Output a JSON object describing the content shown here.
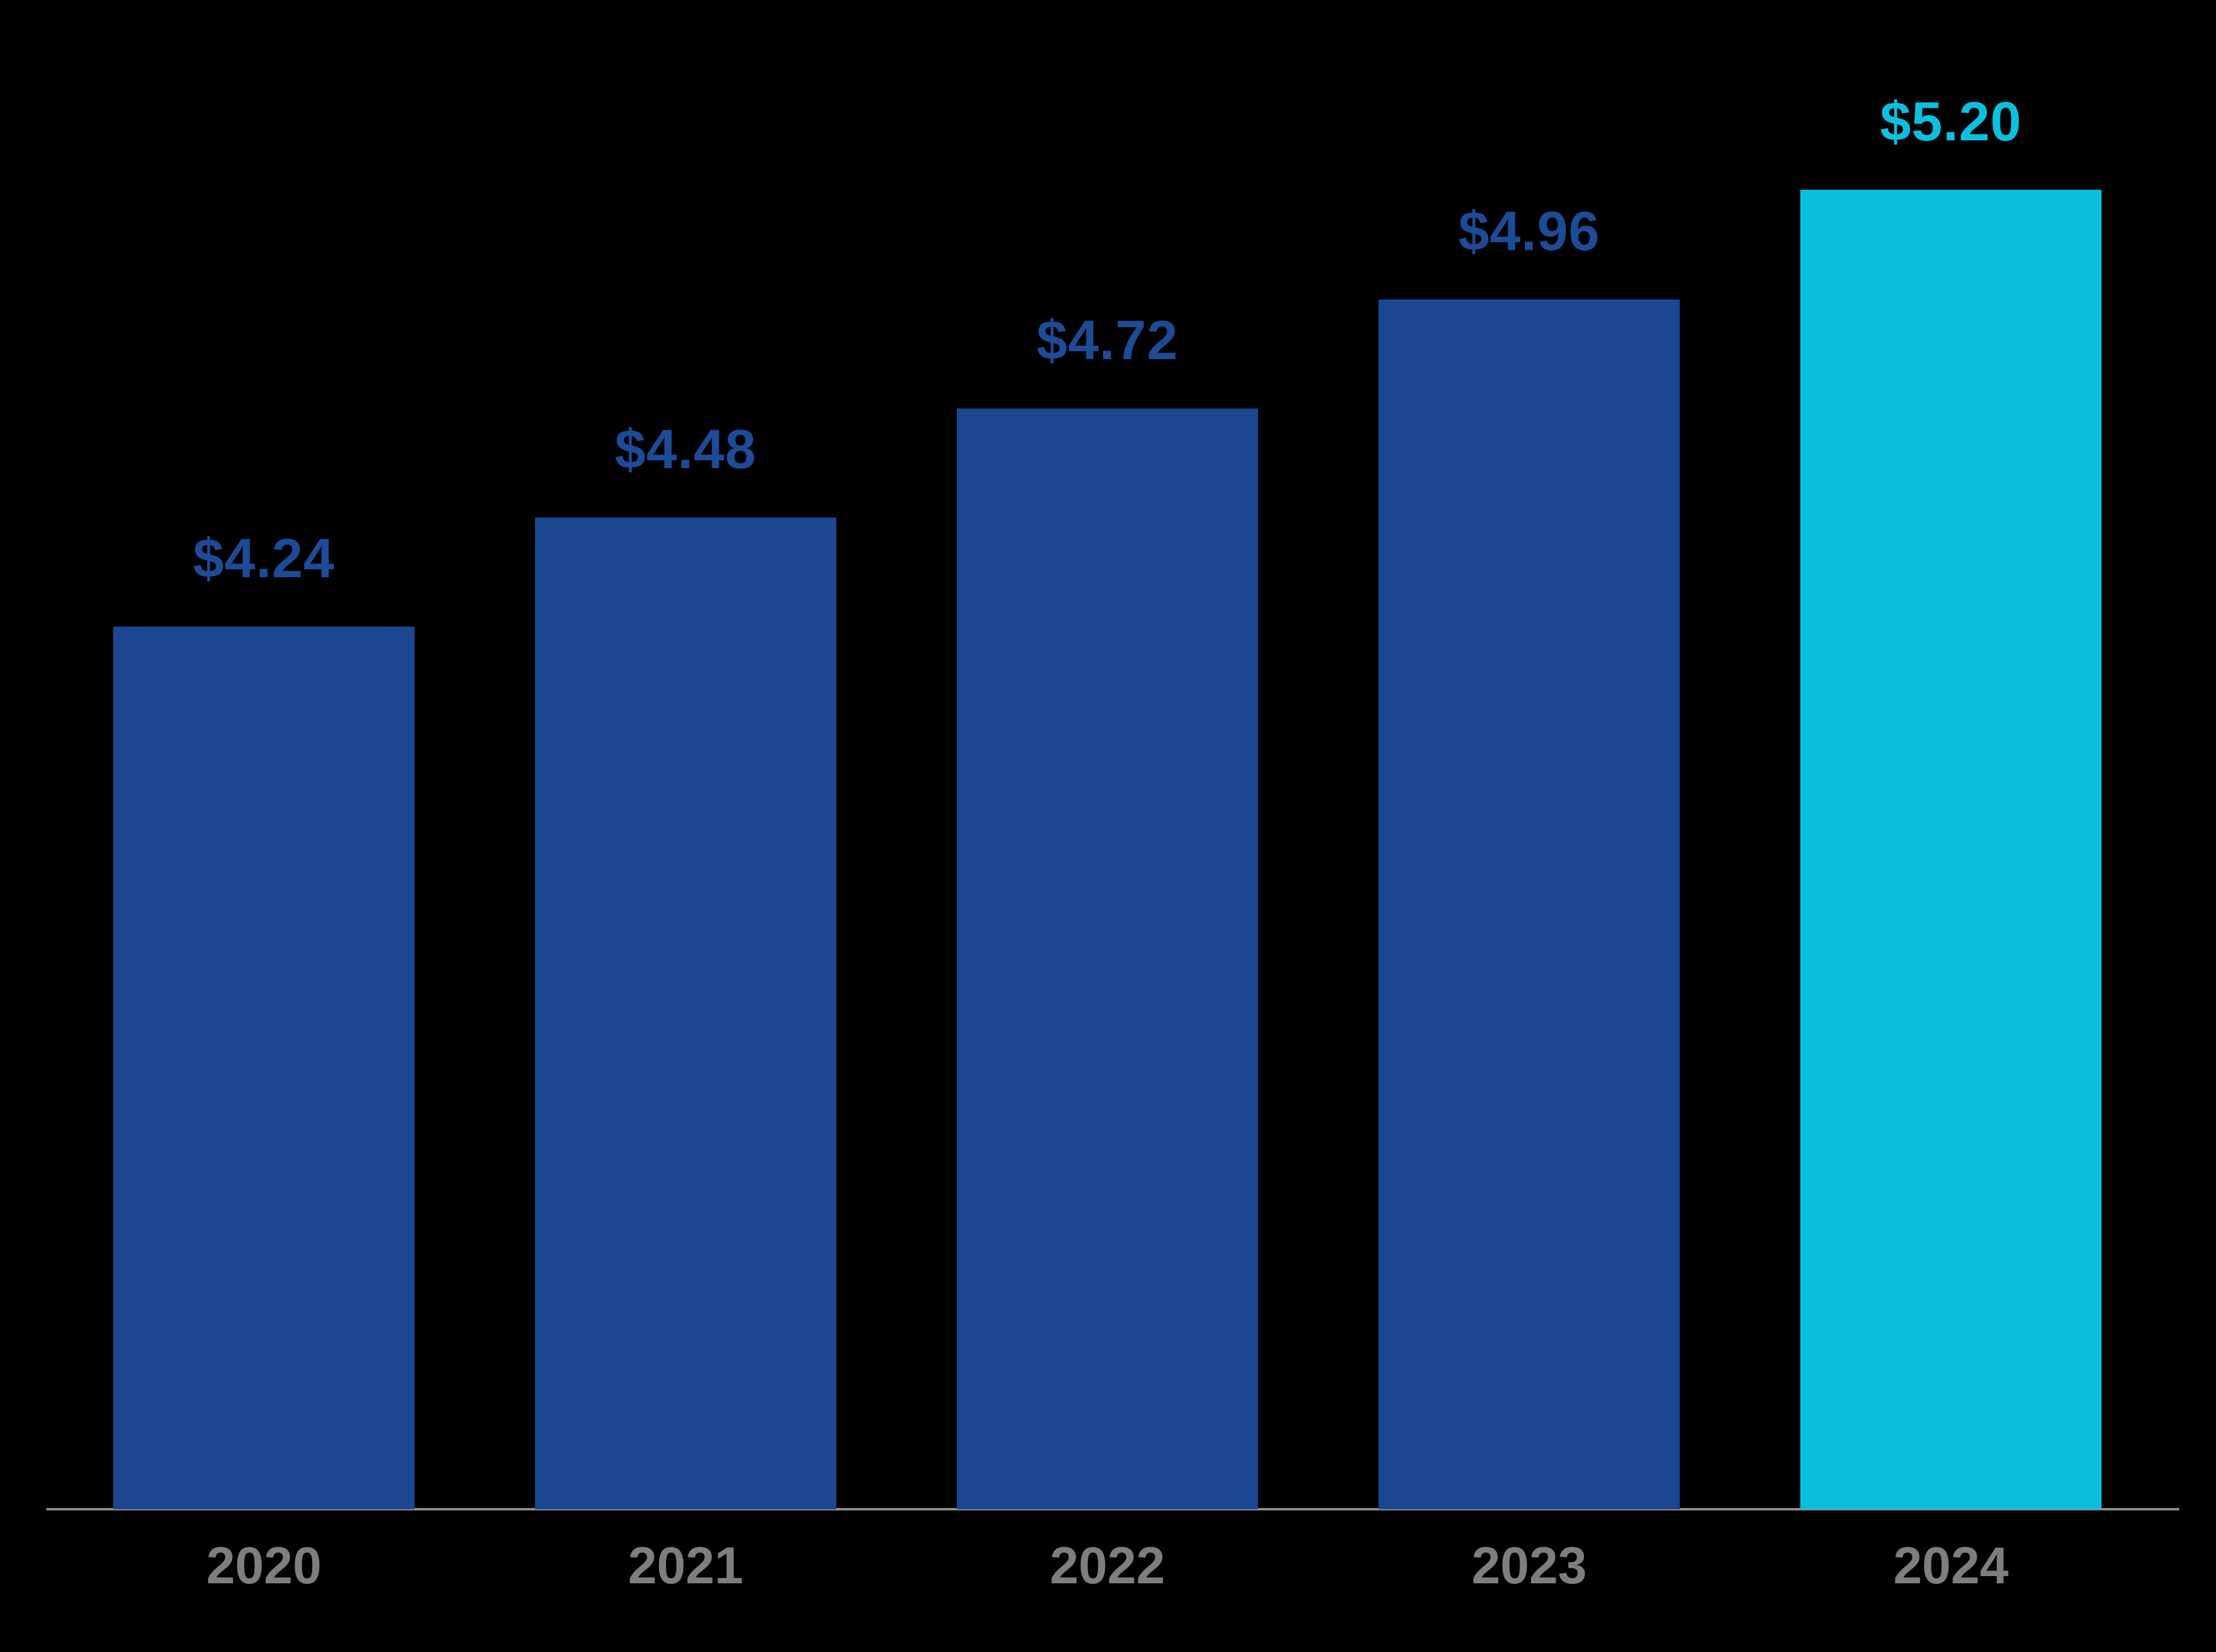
{
  "chart_data": {
    "type": "bar",
    "title": "",
    "categories": [
      "2020",
      "2021",
      "2022",
      "2023",
      "2024"
    ],
    "values": [
      4.24,
      4.48,
      4.72,
      4.96,
      5.2
    ],
    "value_labels": [
      "$4.24",
      "$4.48",
      "$4.72",
      "$4.96",
      "$5.20"
    ],
    "ylim": [
      2.3,
      5.5
    ],
    "grid": false,
    "legend": false,
    "background": "#000000",
    "bar_colors": [
      "#1b4792",
      "#1b4792",
      "#1b4792",
      "#1b4792",
      "#0bc0de"
    ],
    "value_label_colors": [
      "#1d4b97",
      "#1d4b97",
      "#1d4b97",
      "#1d4b97",
      "#0bc0de"
    ],
    "tick_label_color": "#7d7e80",
    "axis_line_color": "#8e8e8e"
  }
}
